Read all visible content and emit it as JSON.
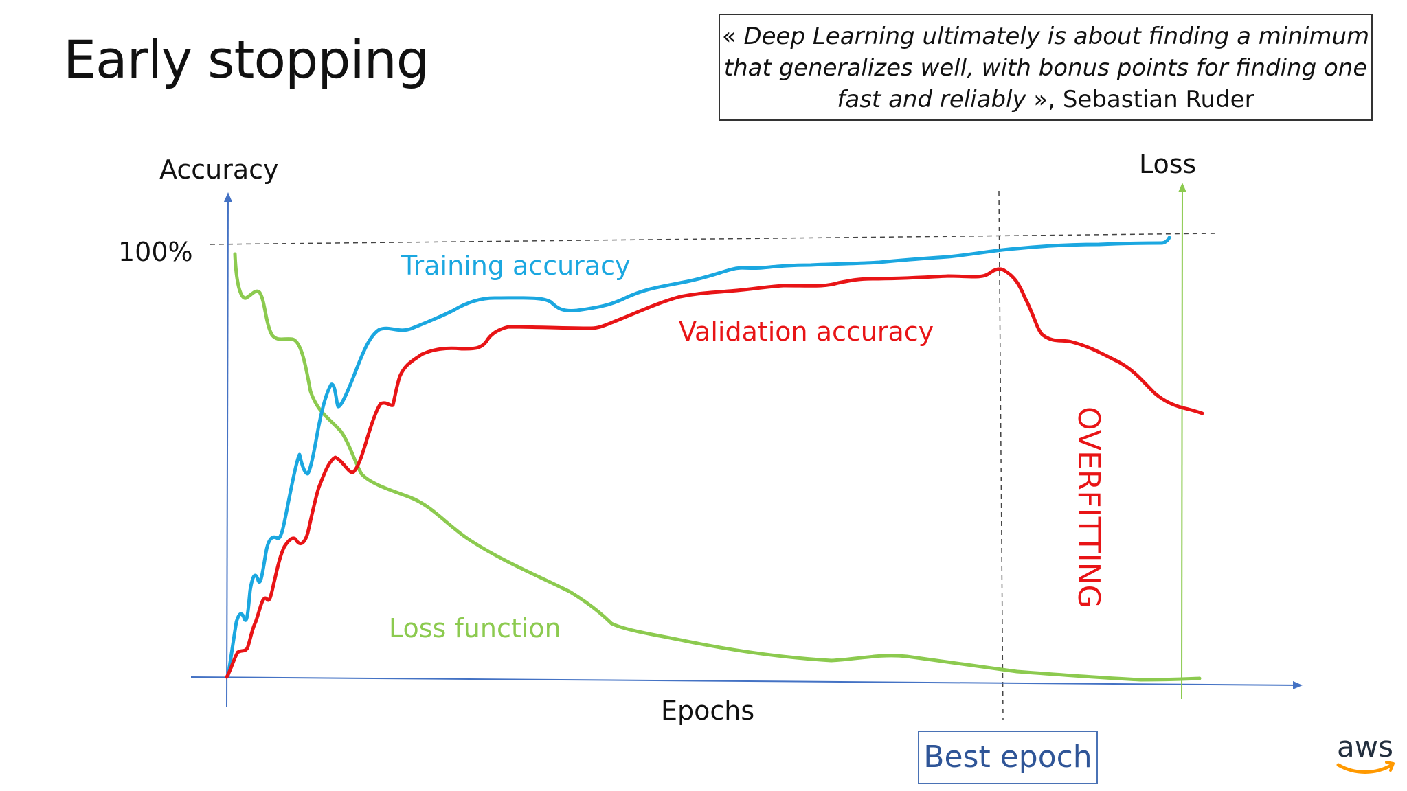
{
  "slide": {
    "title": "Early stopping"
  },
  "quote": {
    "open": "« ",
    "text_line1": "Deep Learning ultimately is about finding a minimum",
    "text_line2": "that generalizes well, with bonus points for finding one",
    "text_line3": "fast and reliably",
    "close": " », Sebastian Ruder"
  },
  "diagram": {
    "left_axis_label": "Accuracy",
    "right_axis_label": "Loss",
    "x_axis_label": "Epochs",
    "tick_100": "100%",
    "training_label": "Training accuracy",
    "validation_label": "Validation accuracy",
    "loss_label": "Loss function",
    "overfitting_label": "OVERFITTING",
    "best_epoch_label": "Best epoch",
    "colors": {
      "training": "#1ba7e0",
      "validation": "#e81416",
      "loss": "#8cca4f",
      "axis": "#4472c4",
      "loss_axis": "#8cca4f",
      "dashed": "#444444",
      "best_box": "#4a72b5"
    }
  },
  "logo": {
    "text": "aws",
    "colors": {
      "text": "#232f3e",
      "smile": "#ff9900"
    }
  }
}
